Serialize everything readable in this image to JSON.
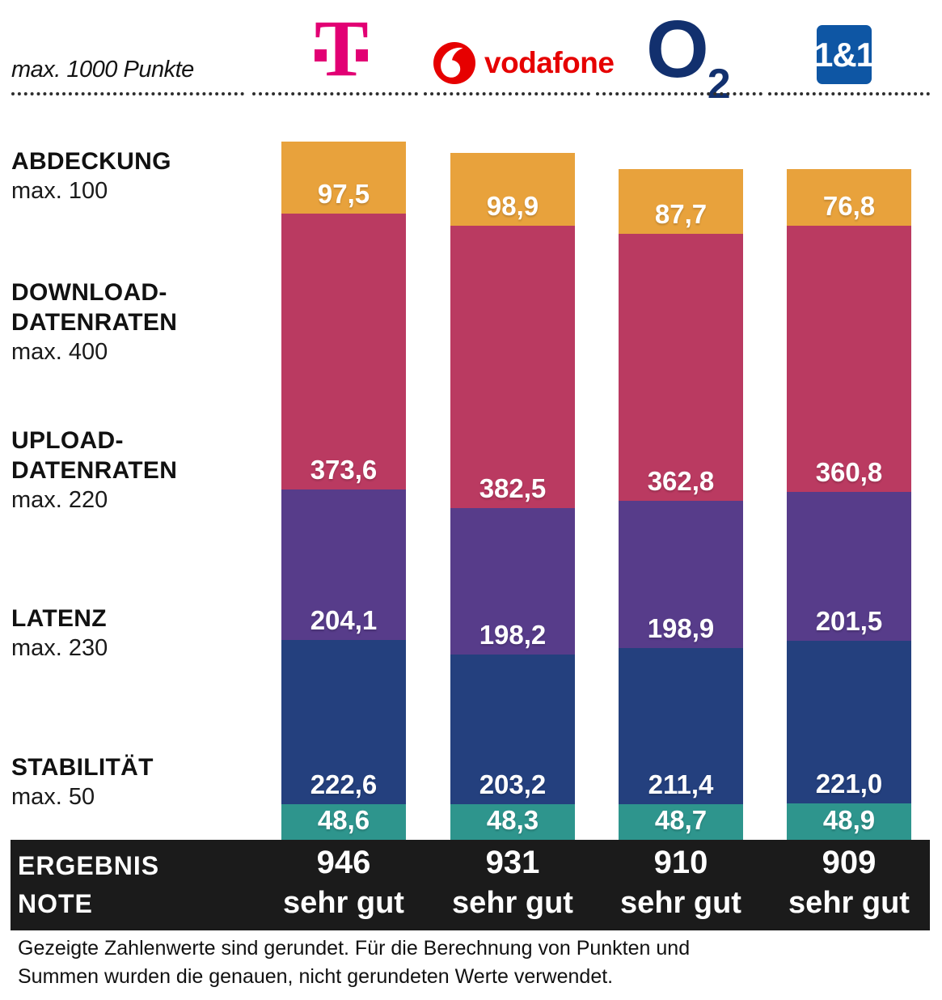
{
  "header": {
    "max_points_label": "max. 1000 Punkte",
    "providers": [
      {
        "name": "Telekom",
        "wordmark": "T"
      },
      {
        "name": "Vodafone",
        "wordmark": "vodafone"
      },
      {
        "name": "O2",
        "wordmark_main": "O",
        "wordmark_sub": "2"
      },
      {
        "name": "1&1",
        "wordmark": "1&1"
      }
    ],
    "brand_colors": {
      "telekom": "#E20074",
      "vodafone": "#E60000",
      "o2": "#12306E",
      "one_and_one": "#0E56A4"
    }
  },
  "categories": [
    {
      "lines": [
        "ABDECKUNG"
      ],
      "max_label": "max. 100"
    },
    {
      "lines": [
        "DOWNLOAD-",
        "DATENRATEN"
      ],
      "max_label": "max. 400"
    },
    {
      "lines": [
        "UPLOAD-",
        "DATENRATEN"
      ],
      "max_label": "max. 220"
    },
    {
      "lines": [
        "LATENZ"
      ],
      "max_label": "max. 230"
    },
    {
      "lines": [
        "STABILITÄT"
      ],
      "max_label": "max. 50"
    }
  ],
  "chart_data": {
    "type": "bar",
    "stacked": true,
    "title": "max. 1000 Punkte",
    "max_total": 1000,
    "decimal_separator": ",",
    "categories": [
      "Telekom",
      "Vodafone",
      "O2",
      "1&1"
    ],
    "series": [
      {
        "name": "Abdeckung",
        "max": 100,
        "color": "#E8A23C",
        "values": [
          97.5,
          98.9,
          87.7,
          76.8
        ]
      },
      {
        "name": "Download-Datenraten",
        "max": 400,
        "color": "#BA3A61",
        "values": [
          373.6,
          382.5,
          362.8,
          360.8
        ]
      },
      {
        "name": "Upload-Datenraten",
        "max": 220,
        "color": "#573C8A",
        "values": [
          204.1,
          198.2,
          198.9,
          201.5
        ]
      },
      {
        "name": "Latenz",
        "max": 230,
        "color": "#24407E",
        "values": [
          222.6,
          203.2,
          211.4,
          221.0
        ]
      },
      {
        "name": "Stabilität",
        "max": 50,
        "color": "#2E958D",
        "values": [
          48.6,
          48.3,
          48.7,
          48.9
        ]
      }
    ],
    "totals": [
      946,
      931,
      910,
      909
    ],
    "grades": [
      "sehr gut",
      "sehr gut",
      "sehr gut",
      "sehr gut"
    ]
  },
  "result": {
    "label_line1": "ERGEBNIS",
    "label_line2": "NOTE"
  },
  "footnote": {
    "text": "Gezeigte Zahlenwerte sind gerundet. Für die Berechnung von Punkten und Summen wurden die genauen, nicht gerundeten Werte verwendet."
  }
}
